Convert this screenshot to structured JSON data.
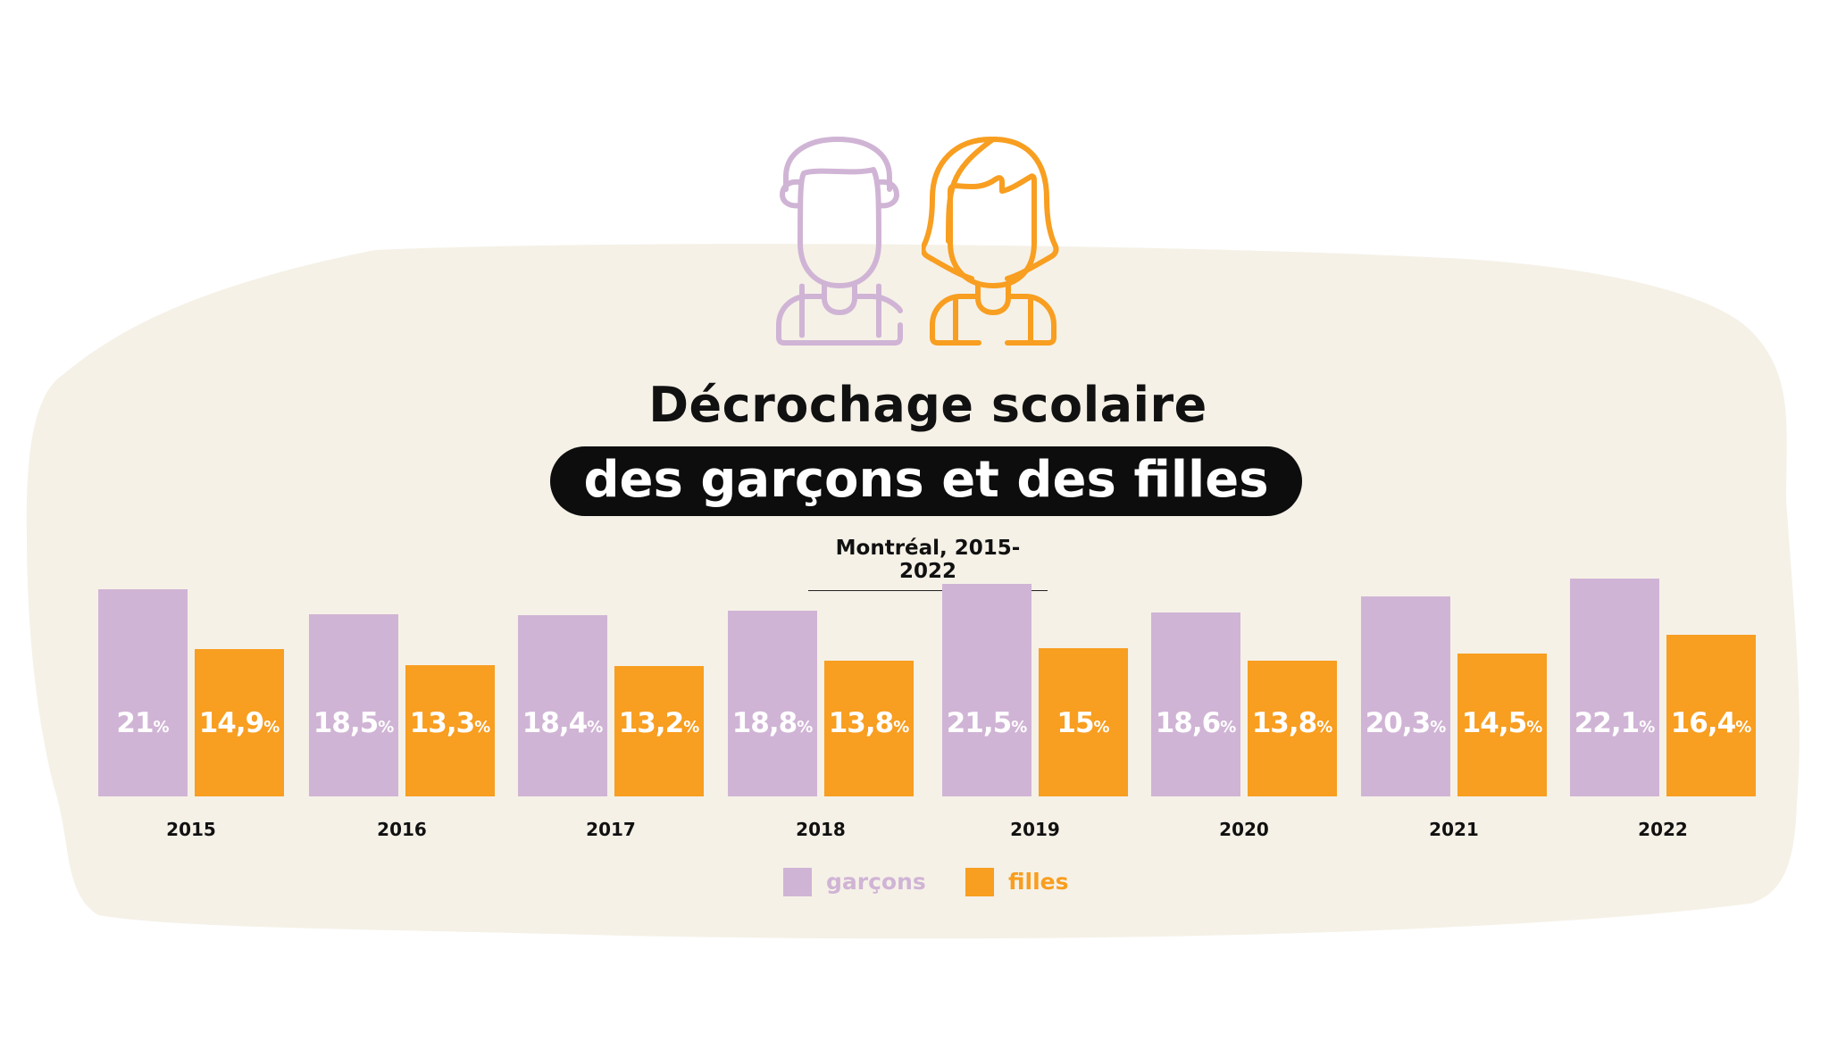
{
  "title_line1": "Décrochage scolaire",
  "title_line2": "des garçons et des filles",
  "subtitle": "Montréal, 2015-2022",
  "colors": {
    "garcons": "#d0b4d5",
    "filles": "#f89e20",
    "background": "#f5f1e7"
  },
  "icons": [
    "boy-icon",
    "girl-icon"
  ],
  "chart_data": {
    "type": "bar",
    "title": "Décrochage scolaire des garçons et des filles",
    "subtitle": "Montréal, 2015-2022",
    "categories": [
      "2015",
      "2016",
      "2017",
      "2018",
      "2019",
      "2020",
      "2021",
      "2022"
    ],
    "series": [
      {
        "name": "garçons",
        "values": [
          21,
          18.5,
          18.4,
          18.8,
          21.5,
          18.6,
          20.3,
          22.1
        ],
        "labels": [
          "21",
          "18,5",
          "18,4",
          "18,8",
          "21,5",
          "18,6",
          "20,3",
          "22,1"
        ]
      },
      {
        "name": "filles",
        "values": [
          14.9,
          13.3,
          13.2,
          13.8,
          15,
          13.8,
          14.5,
          16.4
        ],
        "labels": [
          "14,9",
          "13,3",
          "13,2",
          "13,8",
          "15",
          "13,8",
          "14,5",
          "16,4"
        ]
      }
    ],
    "unit": "%",
    "ylim": [
      0,
      23
    ],
    "grid": false,
    "legend": "bottom-center"
  }
}
